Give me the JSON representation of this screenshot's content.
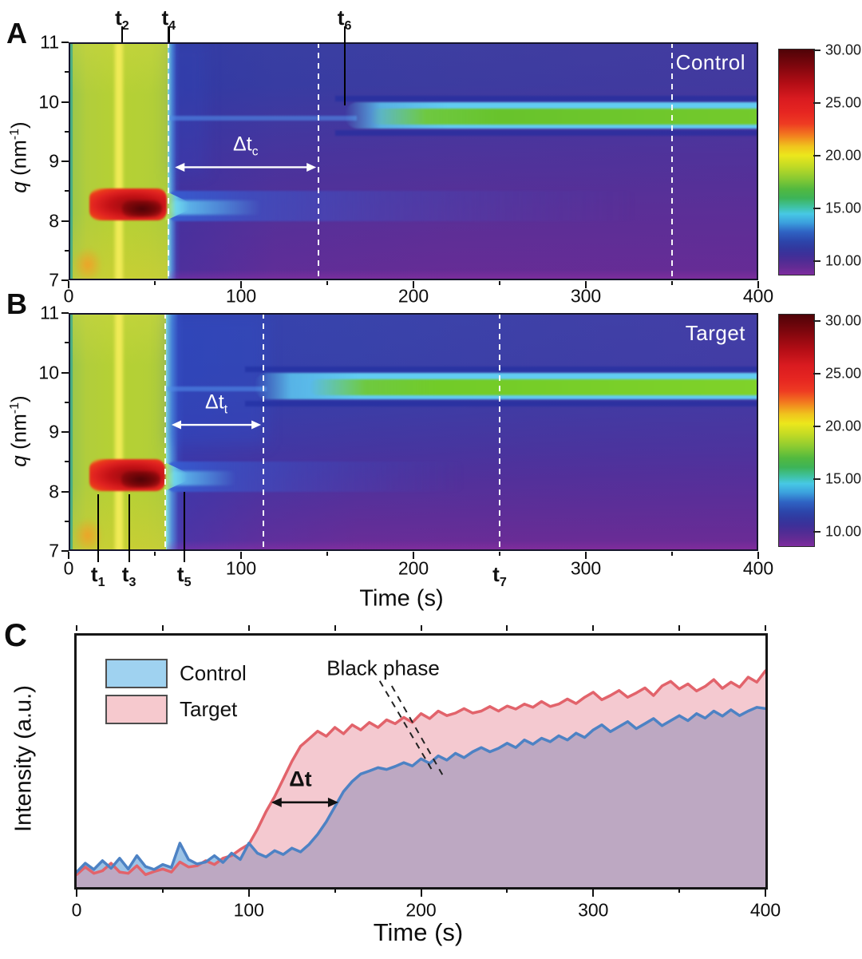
{
  "figure": {
    "panels": [
      {
        "letter": "A"
      },
      {
        "letter": "B"
      },
      {
        "letter": "C"
      }
    ],
    "axis": {
      "time_label": "Time (s)",
      "q_symbol": "q",
      "q_unit_open": " (nm",
      "q_sup": "-1",
      "q_unit_close": ")",
      "intensity_label": "Intensity (a.u.)",
      "x_ticks": [
        0,
        100,
        200,
        300,
        400
      ],
      "q_ticks": [
        11,
        10,
        9,
        8,
        7
      ]
    },
    "colorbar": {
      "tick_labels": [
        "30.00",
        "25.00",
        "20.00",
        "15.00",
        "10.00"
      ]
    },
    "legend": {
      "items": [
        {
          "label": "Control",
          "color": "#9fd2f0"
        },
        {
          "label": "Target",
          "color": "#f6c9ce"
        }
      ]
    },
    "colors": {
      "control_line": "#4d82c4",
      "control_fill": "#9cc3e6",
      "target_line": "#e2636b",
      "target_fill_overlay": "rgba(230,135,150,0.45)",
      "overlap_observed": "#b3a2c0",
      "marker_line": "#000000",
      "dashed_guide": "#ffffff"
    }
  },
  "chart_data": [
    {
      "type": "heatmap",
      "panel": "A",
      "series_label": "Control",
      "xlabel": "Time (s)",
      "ylabel": "q (nm-1)",
      "xlim": [
        0,
        400
      ],
      "ylim": [
        7,
        11
      ],
      "colorbar": {
        "range": [
          9,
          30
        ],
        "ticks": [
          30,
          25,
          20,
          15,
          10
        ]
      },
      "features": {
        "precursor_region": {
          "t": [
            0,
            58
          ],
          "approx_intensity": 17.5,
          "bright_stripe_t": 29
        },
        "precursor_peak": {
          "t": [
            12,
            58
          ],
          "q": [
            8.0,
            8.55
          ],
          "core_t": [
            30,
            55
          ],
          "core_q": [
            8.1,
            8.3
          ],
          "approx_intensity": [
            26,
            30
          ]
        },
        "transition_t": 58,
        "black_phase_band": {
          "t_onset": 160,
          "q": [
            9.55,
            10.0
          ],
          "core_t_onset": 175,
          "core_q": [
            9.62,
            9.88
          ],
          "approx_intensity": [
            14,
            16
          ]
        },
        "decaying_streak": {
          "t": [
            58,
            330
          ],
          "q": [
            8.0,
            8.5
          ],
          "approx_intensity": [
            11,
            13
          ]
        },
        "faint_line_q": 9.73
      },
      "dashed_lines_t": [
        58,
        145,
        350
      ],
      "markers": [
        {
          "text": "t",
          "sub": "2",
          "t": 31,
          "side": "top"
        },
        {
          "text": "t",
          "sub": "4",
          "t": 58,
          "side": "top"
        },
        {
          "text": "t",
          "sub": "6",
          "t": 160,
          "side": "top",
          "line_to_q": 9.94
        }
      ],
      "delta_annotation": {
        "text": "Δt",
        "sub": "c",
        "t_span": [
          58,
          145
        ],
        "q": 8.9
      }
    },
    {
      "type": "heatmap",
      "panel": "B",
      "series_label": "Target",
      "xlabel": "Time (s)",
      "ylabel": "q (nm-1)",
      "xlim": [
        0,
        400
      ],
      "ylim": [
        7,
        11
      ],
      "colorbar": {
        "range": [
          9,
          30
        ],
        "ticks": [
          30,
          25,
          20,
          15,
          10
        ]
      },
      "features": {
        "precursor_region": {
          "t": [
            0,
            57
          ],
          "approx_intensity": 17.5,
          "bright_stripe_t": 29
        },
        "precursor_peak": {
          "t": [
            12,
            57
          ],
          "q": [
            8.0,
            8.55
          ],
          "core_t": [
            30,
            55
          ],
          "core_q": [
            8.1,
            8.3
          ],
          "approx_intensity": [
            27,
            30
          ]
        },
        "transition_t": 57,
        "black_phase_band": {
          "t_onset": 108,
          "q": [
            9.55,
            10.0
          ],
          "core_t_onset": 140,
          "core_q": [
            9.62,
            9.88
          ],
          "approx_intensity": [
            14,
            16
          ]
        },
        "decaying_streak": {
          "t": [
            57,
            230
          ],
          "q": [
            8.0,
            8.5
          ],
          "approx_intensity": [
            11,
            13
          ]
        },
        "faint_line_q": 9.73
      },
      "dashed_lines_t": [
        56,
        113,
        250
      ],
      "markers": [
        {
          "text": "t",
          "sub": "1",
          "t": 17,
          "side": "bottom",
          "line_from_q": 7.95
        },
        {
          "text": "t",
          "sub": "3",
          "t": 35,
          "side": "bottom",
          "line_from_q": 7.95
        },
        {
          "text": "t",
          "sub": "5",
          "t": 67,
          "side": "bottom",
          "line_from_q": 8.0
        },
        {
          "text": "t",
          "sub": "7",
          "t": 250,
          "side": "bottom",
          "label_only": true
        }
      ],
      "delta_annotation": {
        "text": "Δt",
        "sub": "t",
        "t_span": [
          56,
          113
        ],
        "q": 9.12
      }
    },
    {
      "type": "area",
      "panel": "C",
      "xlabel": "Time (s)",
      "ylabel": "Intensity (a.u.)",
      "xlim": [
        0,
        400
      ],
      "x_step": 5,
      "y_units": "normalized fraction of axis height (a.u.)",
      "series": [
        {
          "name": "Control",
          "y": [
            0.06,
            0.095,
            0.07,
            0.105,
            0.075,
            0.115,
            0.072,
            0.125,
            0.082,
            0.07,
            0.09,
            0.078,
            0.175,
            0.11,
            0.092,
            0.1,
            0.125,
            0.098,
            0.135,
            0.11,
            0.175,
            0.135,
            0.12,
            0.145,
            0.13,
            0.155,
            0.14,
            0.17,
            0.21,
            0.26,
            0.32,
            0.38,
            0.42,
            0.45,
            0.462,
            0.475,
            0.468,
            0.48,
            0.495,
            0.482,
            0.51,
            0.492,
            0.522,
            0.505,
            0.532,
            0.515,
            0.538,
            0.555,
            0.538,
            0.552,
            0.572,
            0.555,
            0.585,
            0.568,
            0.592,
            0.578,
            0.602,
            0.585,
            0.612,
            0.595,
            0.625,
            0.645,
            0.618,
            0.638,
            0.658,
            0.63,
            0.65,
            0.67,
            0.642,
            0.662,
            0.682,
            0.662,
            0.69,
            0.672,
            0.7,
            0.68,
            0.705,
            0.682,
            0.7,
            0.715,
            0.71
          ]
        },
        {
          "name": "Target",
          "y": [
            0.05,
            0.08,
            0.055,
            0.065,
            0.095,
            0.06,
            0.055,
            0.085,
            0.05,
            0.062,
            0.072,
            0.06,
            0.1,
            0.08,
            0.085,
            0.105,
            0.09,
            0.115,
            0.125,
            0.15,
            0.17,
            0.23,
            0.3,
            0.36,
            0.43,
            0.5,
            0.56,
            0.59,
            0.62,
            0.6,
            0.635,
            0.61,
            0.645,
            0.625,
            0.655,
            0.635,
            0.665,
            0.65,
            0.675,
            0.655,
            0.69,
            0.67,
            0.7,
            0.682,
            0.692,
            0.71,
            0.692,
            0.7,
            0.718,
            0.7,
            0.72,
            0.708,
            0.728,
            0.715,
            0.738,
            0.718,
            0.728,
            0.748,
            0.73,
            0.755,
            0.775,
            0.745,
            0.762,
            0.782,
            0.755,
            0.772,
            0.792,
            0.762,
            0.8,
            0.818,
            0.788,
            0.808,
            0.78,
            0.798,
            0.825,
            0.79,
            0.815,
            0.795,
            0.835,
            0.815,
            0.86
          ]
        }
      ],
      "annotations": {
        "black_phase": {
          "text": "Black phase",
          "label_t": 178,
          "label_y_frac": 0.87,
          "dash_lines": [
            {
              "t1": 176,
              "y1": 0.82,
              "t2": 206,
              "y2": 0.47
            },
            {
              "t1": 183,
              "y1": 0.8,
              "t2": 213,
              "y2": 0.44
            }
          ]
        },
        "delta": {
          "text": "Δt",
          "t_span": [
            113,
            152
          ],
          "y_frac": 0.337,
          "label_t": 130,
          "label_y_frac": 0.43
        }
      }
    }
  ]
}
